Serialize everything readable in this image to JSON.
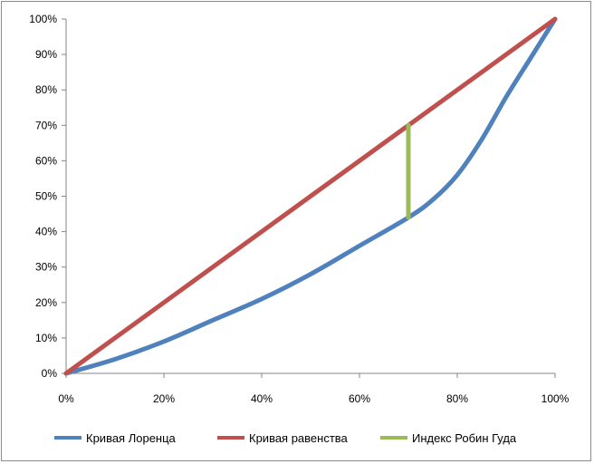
{
  "chart_data": {
    "type": "line",
    "title": "",
    "xlabel": "",
    "ylabel": "",
    "xlim": [
      0,
      100
    ],
    "ylim": [
      0,
      100
    ],
    "x_ticks": [
      "0%",
      "20%",
      "40%",
      "60%",
      "80%",
      "100%"
    ],
    "y_ticks": [
      "0%",
      "10%",
      "20%",
      "30%",
      "40%",
      "50%",
      "60%",
      "70%",
      "80%",
      "90%",
      "100%"
    ],
    "grid": false,
    "legend_position": "bottom",
    "series": [
      {
        "name": "Кривая Лоренца",
        "color": "#4f81bd",
        "x": [
          0,
          10,
          20,
          30,
          40,
          50,
          60,
          70,
          75,
          80,
          85,
          90,
          95,
          100
        ],
        "y": [
          0,
          4,
          9,
          15,
          21,
          28,
          36,
          44,
          49,
          56,
          66,
          78,
          89,
          100
        ]
      },
      {
        "name": "Кривая равенства",
        "color": "#c0504d",
        "x": [
          0,
          100
        ],
        "y": [
          0,
          100
        ]
      },
      {
        "name": "Индекс Робин Гуда",
        "color": "#9bbb59",
        "x": [
          70,
          70
        ],
        "y": [
          44,
          70
        ]
      }
    ]
  }
}
